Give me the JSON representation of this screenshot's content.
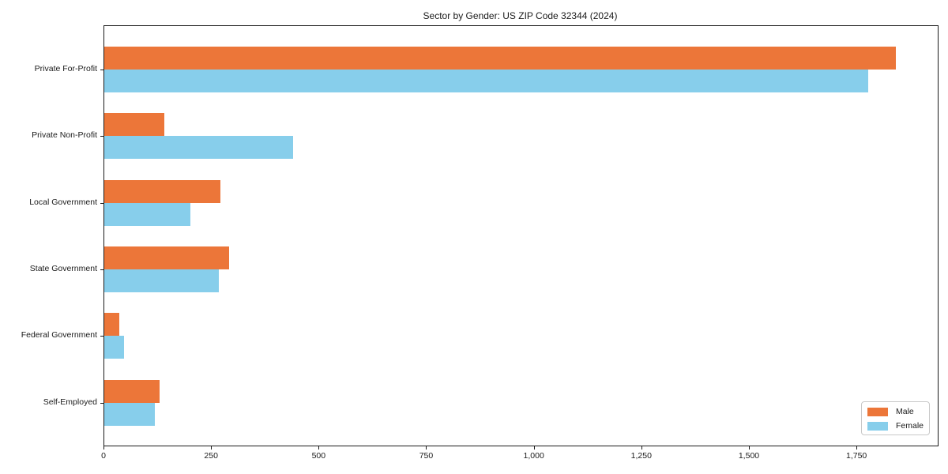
{
  "title": "Sector by Gender: US ZIP Code 32344 (2024)",
  "chart_data": {
    "type": "bar",
    "orientation": "horizontal",
    "title": "Sector by Gender: US ZIP Code 32344 (2024)",
    "categories": [
      "Private For-Profit",
      "Private Non-Profit",
      "Local Government",
      "State Government",
      "Federal Government",
      "Self-Employed"
    ],
    "series": [
      {
        "name": "Male",
        "color": "#EC7639",
        "values": [
          1840,
          140,
          270,
          290,
          35,
          128
        ]
      },
      {
        "name": "Female",
        "color": "#87CEEB",
        "values": [
          1775,
          438,
          200,
          266,
          46,
          118
        ]
      }
    ],
    "xlabel": "",
    "ylabel": "",
    "xlim": [
      0,
      1937
    ],
    "xticks": [
      {
        "value": 0,
        "label": "0"
      },
      {
        "value": 250,
        "label": "250"
      },
      {
        "value": 500,
        "label": "500"
      },
      {
        "value": 750,
        "label": "750"
      },
      {
        "value": 1000,
        "label": "1,000"
      },
      {
        "value": 1250,
        "label": "1,250"
      },
      {
        "value": 1500,
        "label": "1,500"
      },
      {
        "value": 1750,
        "label": "1,750"
      }
    ],
    "grid": false,
    "legend": {
      "position": "lower-right",
      "entries": [
        "Male",
        "Female"
      ]
    }
  },
  "colors": {
    "male": "#EC7639",
    "female": "#87CEEB",
    "axis": "#1a1a1a",
    "legend_border": "#c8c8c8",
    "background": "#ffffff"
  }
}
